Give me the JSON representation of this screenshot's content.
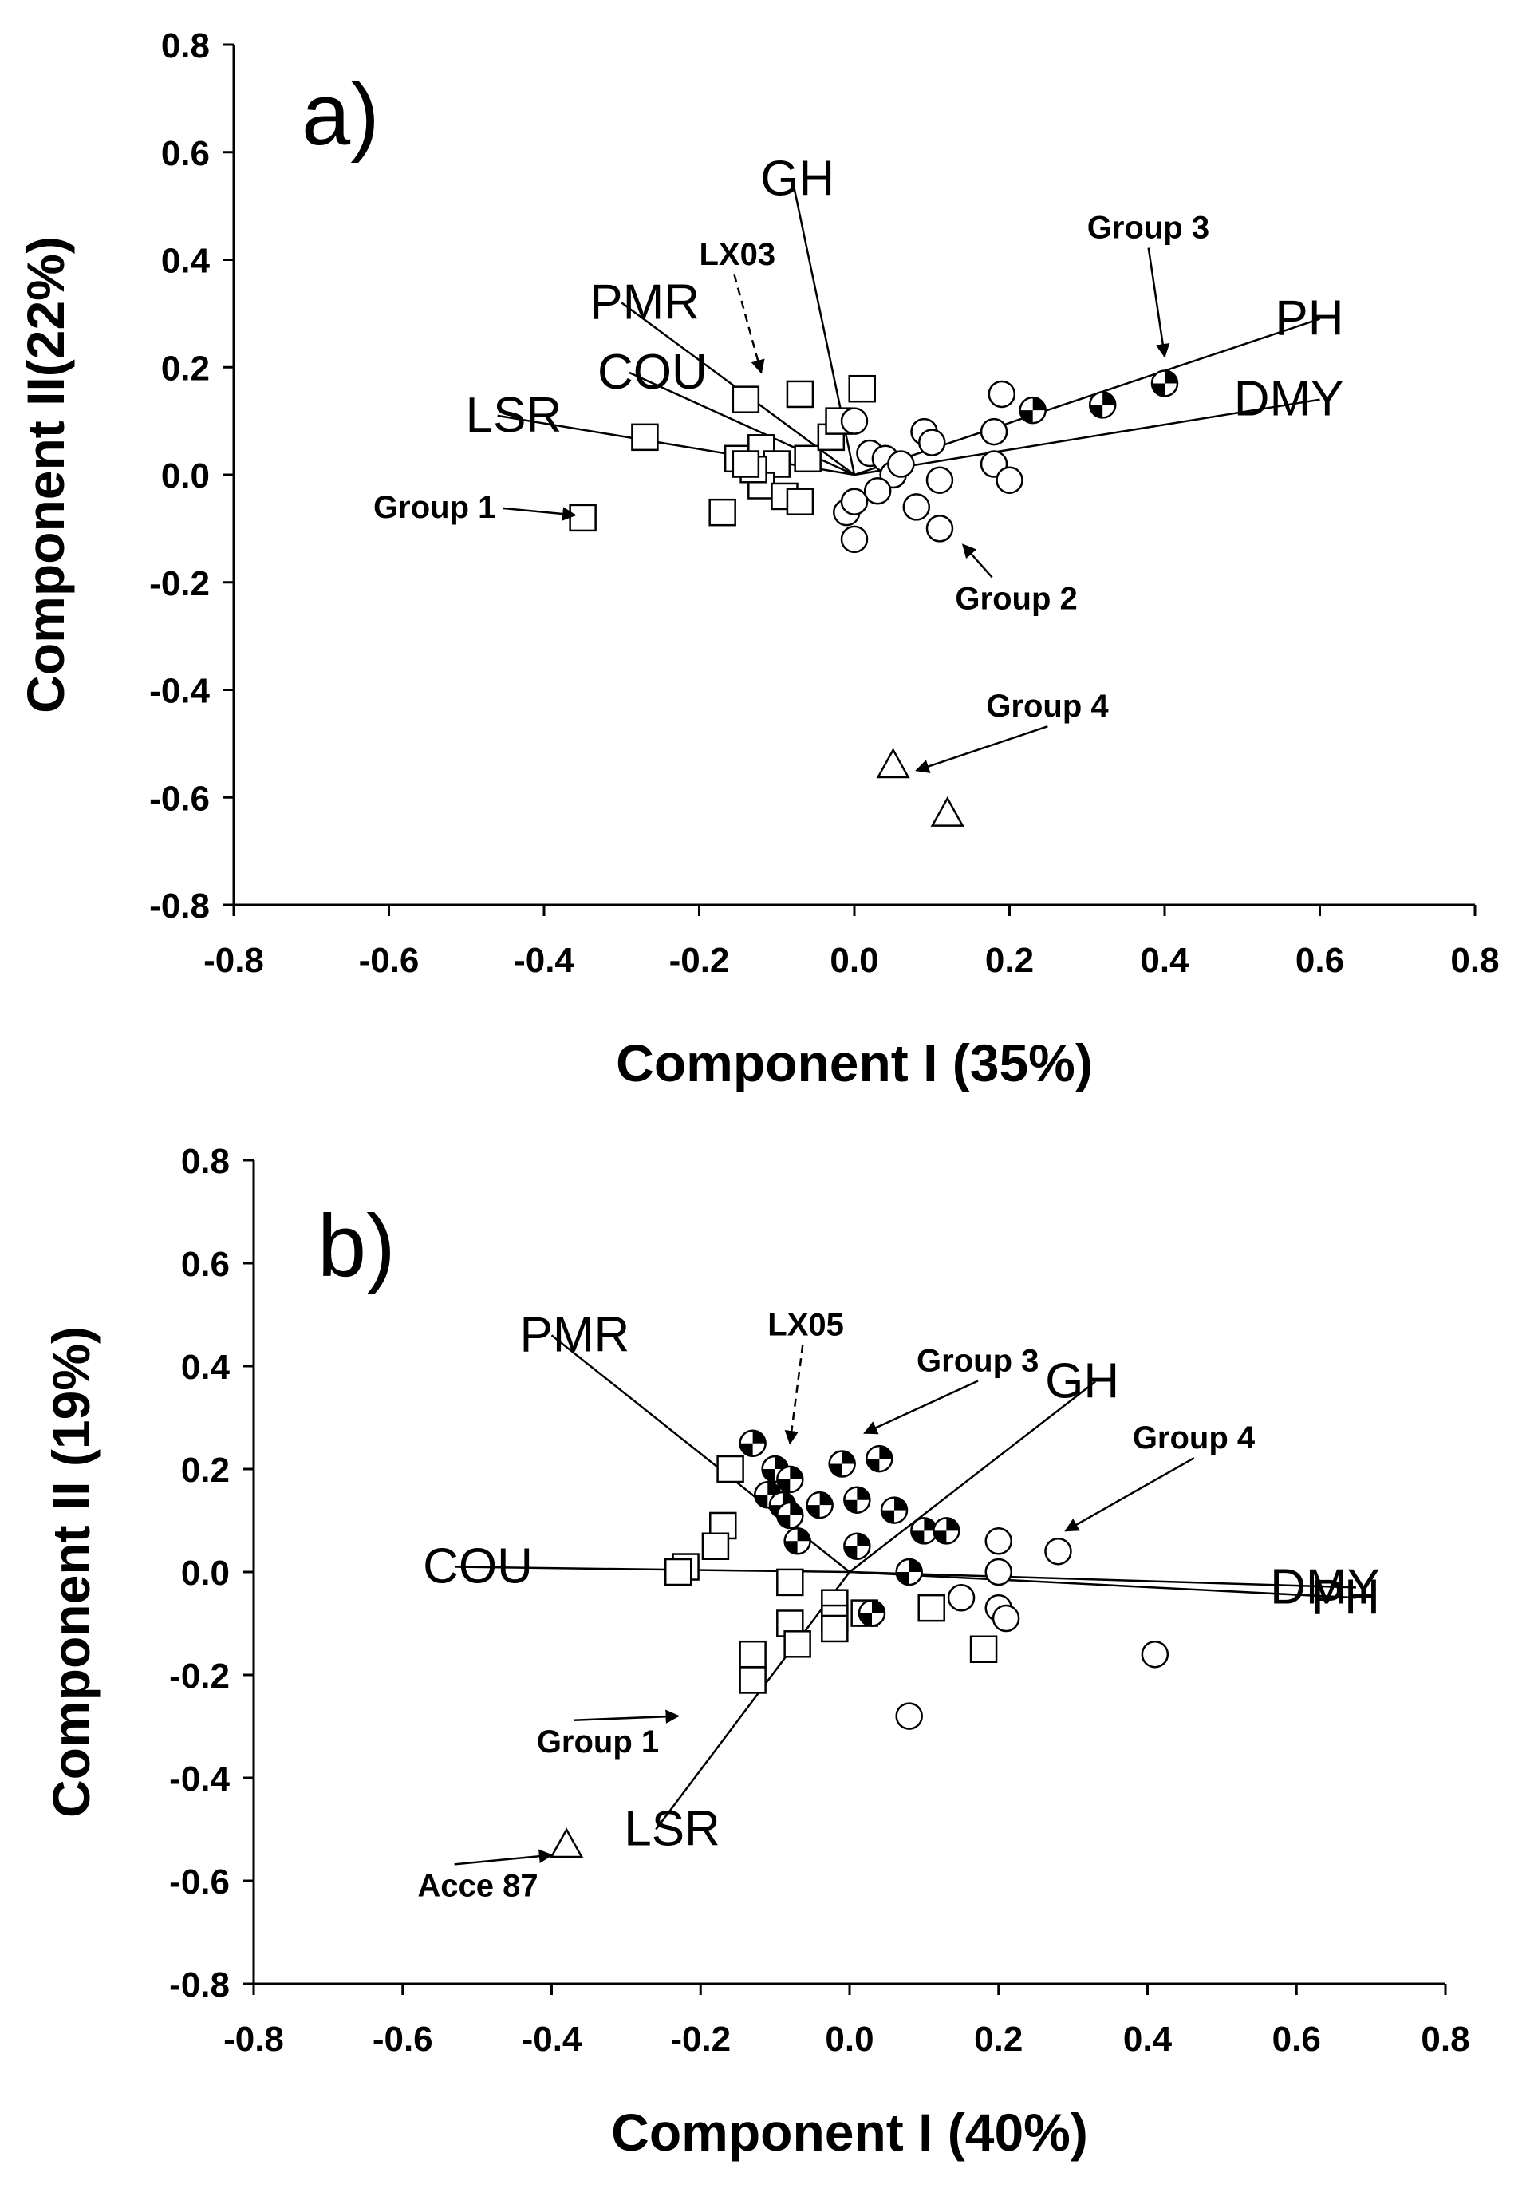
{
  "chart_data": [
    {
      "type": "scatter",
      "subtype": "pca-biplot",
      "panel_label": "a)",
      "xlabel": "Component I (35%)",
      "ylabel": "Component II(22%)",
      "xlim": [
        -0.8,
        0.8
      ],
      "ylim": [
        -0.8,
        0.8
      ],
      "xticks": [
        "-0.8",
        "-0.6",
        "-0.4",
        "-0.2",
        "0.0",
        "0.2",
        "0.4",
        "0.6",
        "0.8"
      ],
      "yticks": [
        "0.8",
        "0.6",
        "0.4",
        "0.2",
        "0.0",
        "-0.2",
        "-0.4",
        "-0.6",
        "-0.8"
      ],
      "vectors": [
        {
          "name": "GH",
          "x": -0.08,
          "y": 0.55
        },
        {
          "name": "PMR",
          "x": -0.3,
          "y": 0.32
        },
        {
          "name": "COU",
          "x": -0.29,
          "y": 0.19
        },
        {
          "name": "LSR",
          "x": -0.46,
          "y": 0.11
        },
        {
          "name": "PH",
          "x": 0.6,
          "y": 0.29
        },
        {
          "name": "DMY",
          "x": 0.6,
          "y": 0.14
        }
      ],
      "series": [
        {
          "name": "Group 1",
          "marker": "square",
          "points": [
            [
              -0.35,
              -0.08
            ],
            [
              -0.27,
              0.07
            ],
            [
              -0.17,
              -0.07
            ],
            [
              -0.14,
              0.14
            ],
            [
              -0.07,
              0.15
            ],
            [
              0.01,
              0.16
            ],
            [
              -0.15,
              0.03
            ],
            [
              -0.12,
              0.05
            ],
            [
              -0.1,
              0.02
            ],
            [
              -0.12,
              -0.02
            ],
            [
              -0.09,
              -0.04
            ],
            [
              -0.07,
              -0.05
            ],
            [
              -0.13,
              0.01
            ],
            [
              -0.06,
              0.03
            ],
            [
              -0.03,
              0.07
            ],
            [
              -0.02,
              0.1
            ],
            [
              -0.14,
              0.02
            ]
          ]
        },
        {
          "name": "Group 2",
          "marker": "circle",
          "points": [
            [
              0.0,
              0.1
            ],
            [
              0.02,
              0.04
            ],
            [
              0.04,
              0.03
            ],
            [
              0.09,
              0.08
            ],
            [
              0.1,
              0.06
            ],
            [
              0.19,
              0.15
            ],
            [
              0.18,
              0.08
            ],
            [
              0.18,
              0.02
            ],
            [
              0.2,
              -0.01
            ],
            [
              0.11,
              -0.01
            ],
            [
              0.08,
              -0.06
            ],
            [
              0.11,
              -0.1
            ],
            [
              0.0,
              -0.12
            ],
            [
              -0.01,
              -0.07
            ],
            [
              0.0,
              -0.05
            ],
            [
              0.05,
              0.0
            ],
            [
              0.03,
              -0.03
            ],
            [
              0.06,
              0.02
            ]
          ]
        },
        {
          "name": "Group 3",
          "marker": "filled-circle",
          "points": [
            [
              0.23,
              0.12
            ],
            [
              0.32,
              0.13
            ],
            [
              0.4,
              0.17
            ]
          ]
        },
        {
          "name": "Group 4",
          "marker": "triangle",
          "points": [
            [
              0.05,
              -0.54
            ],
            [
              0.12,
              -0.63
            ]
          ]
        }
      ],
      "annotations": [
        {
          "text": "Group 1",
          "tx": -0.62,
          "ty": -0.08,
          "ax": -0.36,
          "ay": -0.075,
          "dashed": false
        },
        {
          "text": "Group 2",
          "tx": 0.13,
          "ty": -0.25,
          "ax": 0.14,
          "ay": -0.13,
          "dashed": false
        },
        {
          "text": "Group 3",
          "tx": 0.3,
          "ty": 0.44,
          "ax": 0.4,
          "ay": 0.22,
          "dashed": false
        },
        {
          "text": "Group 4",
          "tx": 0.17,
          "ty": -0.45,
          "ax": 0.08,
          "ay": -0.55,
          "dashed": false
        },
        {
          "text": "LX03",
          "tx": -0.2,
          "ty": 0.39,
          "ax": -0.12,
          "ay": 0.19,
          "dashed": true
        }
      ]
    },
    {
      "type": "scatter",
      "subtype": "pca-biplot",
      "panel_label": "b)",
      "xlabel": "Component I (40%)",
      "ylabel": "Component II (19%)",
      "xlim": [
        -0.8,
        0.8
      ],
      "ylim": [
        -0.8,
        0.8
      ],
      "xticks": [
        "-0.8",
        "-0.6",
        "-0.4",
        "-0.2",
        "0.0",
        "0.2",
        "0.4",
        "0.6",
        "0.8"
      ],
      "yticks": [
        "0.8",
        "0.6",
        "0.4",
        "0.2",
        "0.0",
        "-0.2",
        "-0.4",
        "-0.6",
        "-0.8"
      ],
      "vectors": [
        {
          "name": "PMR",
          "x": -0.4,
          "y": 0.46
        },
        {
          "name": "GH",
          "x": 0.33,
          "y": 0.37
        },
        {
          "name": "COU",
          "x": -0.53,
          "y": 0.01
        },
        {
          "name": "DMY",
          "x": 0.68,
          "y": -0.03
        },
        {
          "name": "PH",
          "x": 0.68,
          "y": -0.05
        },
        {
          "name": "LSR",
          "x": -0.26,
          "y": -0.5
        }
      ],
      "series": [
        {
          "name": "Group 1",
          "marker": "square",
          "points": [
            [
              -0.16,
              0.2
            ],
            [
              -0.17,
              0.09
            ],
            [
              -0.18,
              0.05
            ],
            [
              -0.22,
              0.01
            ],
            [
              -0.23,
              0.0
            ],
            [
              -0.08,
              -0.02
            ],
            [
              -0.08,
              -0.1
            ],
            [
              -0.07,
              -0.14
            ],
            [
              -0.13,
              -0.16
            ],
            [
              -0.13,
              -0.21
            ],
            [
              -0.02,
              -0.06
            ],
            [
              -0.02,
              -0.09
            ],
            [
              -0.02,
              -0.11
            ],
            [
              0.11,
              -0.07
            ],
            [
              0.18,
              -0.15
            ],
            [
              0.02,
              -0.08
            ]
          ]
        },
        {
          "name": "Group 3",
          "marker": "filled-circle",
          "points": [
            [
              -0.13,
              0.25
            ],
            [
              -0.1,
              0.2
            ],
            [
              -0.08,
              0.18
            ],
            [
              -0.11,
              0.15
            ],
            [
              -0.09,
              0.13
            ],
            [
              -0.08,
              0.11
            ],
            [
              -0.07,
              0.06
            ],
            [
              -0.04,
              0.13
            ],
            [
              -0.01,
              0.21
            ],
            [
              0.04,
              0.22
            ],
            [
              0.01,
              0.14
            ],
            [
              0.06,
              0.12
            ],
            [
              0.1,
              0.08
            ],
            [
              0.13,
              0.08
            ],
            [
              0.01,
              0.05
            ],
            [
              0.08,
              0.0
            ],
            [
              0.03,
              -0.08
            ]
          ]
        },
        {
          "name": "Group 4",
          "marker": "circle",
          "points": [
            [
              0.28,
              0.04
            ],
            [
              0.2,
              0.06
            ],
            [
              0.2,
              0.0
            ],
            [
              0.15,
              -0.05
            ],
            [
              0.2,
              -0.07
            ],
            [
              0.21,
              -0.09
            ],
            [
              0.41,
              -0.16
            ],
            [
              0.08,
              -0.28
            ]
          ]
        },
        {
          "name": "Acce 87",
          "marker": "triangle",
          "points": [
            [
              -0.38,
              -0.53
            ]
          ]
        }
      ],
      "annotations": [
        {
          "text": "LX05",
          "tx": -0.11,
          "ty": 0.46,
          "ax": -0.08,
          "ay": 0.25,
          "dashed": true
        },
        {
          "text": "Group 3",
          "tx": 0.09,
          "ty": 0.39,
          "ax": 0.02,
          "ay": 0.27,
          "dashed": false
        },
        {
          "text": "Group 4",
          "tx": 0.38,
          "ty": 0.24,
          "ax": 0.29,
          "ay": 0.08,
          "dashed": false
        },
        {
          "text": "Group 1",
          "tx": -0.42,
          "ty": -0.35,
          "ax": -0.23,
          "ay": -0.28,
          "dashed": false
        },
        {
          "text": "Acce 87",
          "tx": -0.58,
          "ty": -0.63,
          "ax": -0.4,
          "ay": -0.55,
          "dashed": false
        }
      ]
    }
  ]
}
